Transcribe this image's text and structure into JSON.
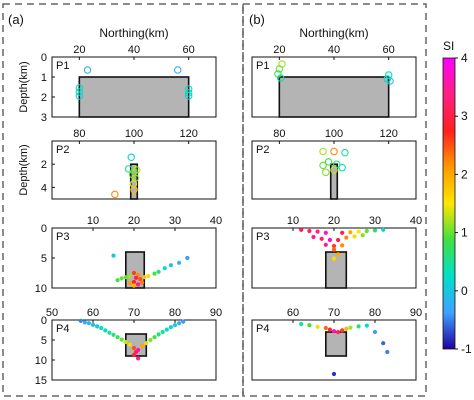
{
  "panel_labels": {
    "left": "(a)",
    "right": "(b)"
  },
  "colorbar": {
    "label": "SI",
    "min": -1,
    "max": 4,
    "ticks": [
      "4",
      "3",
      "2",
      "1",
      "0",
      "-1"
    ],
    "colors": [
      "#ff00ff",
      "#ff2080",
      "#ff2020",
      "#ff9a00",
      "#ffe600",
      "#40e040",
      "#00e0c8",
      "#40a0ff",
      "#2000a0"
    ]
  },
  "chart_data": [
    {
      "id": "a-P1",
      "type": "scatter",
      "panel_label": "P1",
      "xlabel": "Northing(km)",
      "ylabel": "Depth(km)",
      "xlim": [
        10,
        70
      ],
      "ylim": [
        0,
        3
      ],
      "y_inverted": true,
      "xticks": [
        "20",
        "40",
        "60"
      ],
      "yticks": [
        "0",
        "1",
        "2",
        "3"
      ],
      "block": {
        "x0": 20,
        "x1": 60,
        "y0": 1,
        "y1": 3
      },
      "points": [
        {
          "x": 23,
          "y": 0.65,
          "si": -0.2
        },
        {
          "x": 56,
          "y": 0.65,
          "si": -0.3
        },
        {
          "x": 20,
          "y": 1.55,
          "si": 0.2
        },
        {
          "x": 20,
          "y": 1.75,
          "si": 0.3
        },
        {
          "x": 20,
          "y": 1.95,
          "si": 0.1
        },
        {
          "x": 60,
          "y": 1.6,
          "si": 0.2
        },
        {
          "x": 60,
          "y": 1.8,
          "si": 0.3
        },
        {
          "x": 60,
          "y": 1.95,
          "si": 0.1
        }
      ]
    },
    {
      "id": "a-P2",
      "type": "scatter",
      "panel_label": "P2",
      "xlabel": "",
      "ylabel": "Depth(km)",
      "xlim": [
        70,
        130
      ],
      "ylim": [
        0,
        5
      ],
      "y_inverted": true,
      "xticks": [
        "80",
        "100",
        "120"
      ],
      "yticks": [
        "2",
        "4"
      ],
      "block": {
        "x0": 98.8,
        "x1": 101.2,
        "y0": 2,
        "y1": 5
      },
      "points": [
        {
          "x": 99,
          "y": 1.4,
          "si": 0.1
        },
        {
          "x": 98,
          "y": 2.4,
          "si": 0.6
        },
        {
          "x": 100,
          "y": 2.6,
          "si": 0.9
        },
        {
          "x": 101,
          "y": 2.5,
          "si": 1.3
        },
        {
          "x": 99.5,
          "y": 2.9,
          "si": 1.0
        },
        {
          "x": 100.5,
          "y": 3.2,
          "si": 1.2
        },
        {
          "x": 99.8,
          "y": 3.7,
          "si": 1.4
        },
        {
          "x": 100,
          "y": 4.2,
          "si": 1.8
        },
        {
          "x": 93,
          "y": 4.6,
          "si": 2.2
        }
      ]
    },
    {
      "id": "a-P3",
      "type": "scatter",
      "panel_label": "P3",
      "xlabel": "",
      "ylabel": "",
      "xlim": [
        0,
        40
      ],
      "ylim": [
        0,
        10
      ],
      "y_inverted": true,
      "xticks": [
        "10",
        "20",
        "30",
        "40"
      ],
      "yticks": [
        "0",
        "5",
        "10"
      ],
      "block": {
        "x0": 18,
        "x1": 22.5,
        "y0": 4,
        "y1": 10
      },
      "points": [
        {
          "x": 15,
          "y": 4.6,
          "si": 0.0
        },
        {
          "x": 20,
          "y": 7.5,
          "si": 2.6
        },
        {
          "x": 21,
          "y": 7.8,
          "si": 2.2
        },
        {
          "x": 19,
          "y": 8.0,
          "si": 1.2
        },
        {
          "x": 18,
          "y": 8.2,
          "si": 1.0
        },
        {
          "x": 17,
          "y": 8.4,
          "si": 1.0
        },
        {
          "x": 16,
          "y": 8.7,
          "si": 0.9
        },
        {
          "x": 20.5,
          "y": 8.3,
          "si": 3.0
        },
        {
          "x": 21.5,
          "y": 8.5,
          "si": 2.5
        },
        {
          "x": 22.5,
          "y": 8.2,
          "si": 1.8
        },
        {
          "x": 23.5,
          "y": 8.0,
          "si": 1.4
        },
        {
          "x": 25,
          "y": 7.6,
          "si": 0.9
        },
        {
          "x": 26,
          "y": 7.3,
          "si": 0.6
        },
        {
          "x": 27.5,
          "y": 6.7,
          "si": 0.2
        },
        {
          "x": 29,
          "y": 6.2,
          "si": -0.1
        },
        {
          "x": 31,
          "y": 5.8,
          "si": -0.2
        },
        {
          "x": 33,
          "y": 5.0,
          "si": -0.4
        },
        {
          "x": 20,
          "y": 9.0,
          "si": 2.8
        },
        {
          "x": 19,
          "y": 9.2,
          "si": 2.1
        },
        {
          "x": 21,
          "y": 9.4,
          "si": 3.3
        },
        {
          "x": 20,
          "y": 9.6,
          "si": 1.9
        },
        {
          "x": 22,
          "y": 9.1,
          "si": 2.3
        }
      ]
    },
    {
      "id": "a-P4",
      "type": "scatter",
      "panel_label": "P4",
      "xlabel": "",
      "ylabel": "",
      "xlim": [
        50,
        90
      ],
      "ylim": [
        0,
        15
      ],
      "y_inverted": true,
      "xticks": [
        "50",
        "60",
        "70",
        "80",
        "90"
      ],
      "yticks": [
        "0",
        "5",
        "10",
        "15"
      ],
      "block": {
        "x0": 68,
        "x1": 73,
        "y0": 3.5,
        "y1": 9
      },
      "points": [
        {
          "x": 57,
          "y": 0.2,
          "si": -0.5
        },
        {
          "x": 58,
          "y": 0.6,
          "si": -0.3
        },
        {
          "x": 59,
          "y": 0.8,
          "si": -0.2
        },
        {
          "x": 60,
          "y": 1.2,
          "si": -0.1
        },
        {
          "x": 61,
          "y": 1.6,
          "si": 0.0
        },
        {
          "x": 62,
          "y": 2.0,
          "si": 0.2
        },
        {
          "x": 63,
          "y": 2.6,
          "si": 0.3
        },
        {
          "x": 64,
          "y": 3.2,
          "si": 0.5
        },
        {
          "x": 65,
          "y": 3.7,
          "si": 0.6
        },
        {
          "x": 66,
          "y": 4.3,
          "si": 0.8
        },
        {
          "x": 67,
          "y": 4.9,
          "si": 1.0
        },
        {
          "x": 68,
          "y": 5.5,
          "si": 1.3
        },
        {
          "x": 69,
          "y": 6.2,
          "si": 1.6
        },
        {
          "x": 70,
          "y": 7.0,
          "si": 2.5
        },
        {
          "x": 70.5,
          "y": 8.0,
          "si": 3.2
        },
        {
          "x": 71,
          "y": 7.5,
          "si": 3.6
        },
        {
          "x": 70,
          "y": 8.7,
          "si": 3.0
        },
        {
          "x": 72,
          "y": 6.5,
          "si": 2.0
        },
        {
          "x": 73,
          "y": 5.8,
          "si": 1.4
        },
        {
          "x": 74,
          "y": 5.0,
          "si": 1.1
        },
        {
          "x": 75,
          "y": 4.3,
          "si": 0.9
        },
        {
          "x": 76,
          "y": 3.6,
          "si": 0.6
        },
        {
          "x": 77,
          "y": 3.0,
          "si": 0.5
        },
        {
          "x": 78,
          "y": 2.4,
          "si": 0.3
        },
        {
          "x": 79,
          "y": 1.8,
          "si": 0.1
        },
        {
          "x": 80,
          "y": 1.3,
          "si": 0.0
        },
        {
          "x": 81,
          "y": 0.8,
          "si": -0.2
        },
        {
          "x": 82,
          "y": 0.4,
          "si": -0.4
        },
        {
          "x": 71,
          "y": 9.6,
          "si": 3.5
        }
      ]
    },
    {
      "id": "b-P1",
      "type": "scatter",
      "panel_label": "P1",
      "xlabel": "Northing(km)",
      "ylabel": "",
      "xlim": [
        10,
        70
      ],
      "ylim": [
        0,
        3
      ],
      "y_inverted": true,
      "xticks": [
        "20",
        "40",
        "60"
      ],
      "yticks": [],
      "block": {
        "x0": 20,
        "x1": 60,
        "y0": 1,
        "y1": 3
      },
      "points": [
        {
          "x": 21,
          "y": 0.35,
          "si": 1.2
        },
        {
          "x": 20,
          "y": 0.6,
          "si": 1.0
        },
        {
          "x": 19.5,
          "y": 0.85,
          "si": 0.8
        },
        {
          "x": 20.5,
          "y": 1.05,
          "si": 0.4
        },
        {
          "x": 60,
          "y": 0.9,
          "si": 0.3
        },
        {
          "x": 59.5,
          "y": 1.1,
          "si": 0.2
        },
        {
          "x": 60.5,
          "y": 1.2,
          "si": 0.1
        }
      ]
    },
    {
      "id": "b-P2",
      "type": "scatter",
      "panel_label": "P2",
      "xlabel": "",
      "ylabel": "",
      "xlim": [
        70,
        130
      ],
      "ylim": [
        0,
        5
      ],
      "y_inverted": true,
      "xticks": [
        "80",
        "100",
        "120"
      ],
      "yticks": [],
      "block": {
        "x0": 98.8,
        "x1": 101.2,
        "y0": 2,
        "y1": 5
      },
      "points": [
        {
          "x": 96,
          "y": 0.9,
          "si": 1.2
        },
        {
          "x": 100,
          "y": 0.9,
          "si": 2.2
        },
        {
          "x": 104,
          "y": 1.0,
          "si": 0.5
        },
        {
          "x": 96,
          "y": 2.1,
          "si": 1.0
        },
        {
          "x": 98,
          "y": 1.8,
          "si": 0.8
        },
        {
          "x": 101,
          "y": 2.0,
          "si": 0.6
        },
        {
          "x": 103,
          "y": 2.3,
          "si": 0.3
        },
        {
          "x": 97,
          "y": 2.7,
          "si": 1.1
        },
        {
          "x": 100,
          "y": 2.5,
          "si": 1.3
        }
      ]
    },
    {
      "id": "b-P3",
      "type": "scatter",
      "panel_label": "P3",
      "xlabel": "",
      "ylabel": "",
      "xlim": [
        0,
        40
      ],
      "ylim": [
        0,
        10
      ],
      "y_inverted": true,
      "xticks": [
        "10",
        "20",
        "30",
        "40"
      ],
      "yticks": [],
      "block": {
        "x0": 18,
        "x1": 23,
        "y0": 4,
        "y1": 10
      },
      "points": [
        {
          "x": 12,
          "y": 0.3,
          "si": 3.0
        },
        {
          "x": 14,
          "y": 0.5,
          "si": 3.2
        },
        {
          "x": 16,
          "y": 0.6,
          "si": 3.4
        },
        {
          "x": 18,
          "y": 0.8,
          "si": 3.6
        },
        {
          "x": 22,
          "y": 0.8,
          "si": 2.9
        },
        {
          "x": 24,
          "y": 0.7,
          "si": 2.0
        },
        {
          "x": 26,
          "y": 0.6,
          "si": 1.5
        },
        {
          "x": 28,
          "y": 0.5,
          "si": 1.0
        },
        {
          "x": 30,
          "y": 0.4,
          "si": 0.6
        },
        {
          "x": 32,
          "y": 0.3,
          "si": 0.2
        },
        {
          "x": 15,
          "y": 1.5,
          "si": 3.5
        },
        {
          "x": 17,
          "y": 1.8,
          "si": 3.2
        },
        {
          "x": 19,
          "y": 2.0,
          "si": 3.8
        },
        {
          "x": 21,
          "y": 2.0,
          "si": 3.0
        },
        {
          "x": 23,
          "y": 1.6,
          "si": 2.2
        },
        {
          "x": 25,
          "y": 1.4,
          "si": 1.6
        },
        {
          "x": 27,
          "y": 1.2,
          "si": 1.1
        },
        {
          "x": 18,
          "y": 2.8,
          "si": 3.5
        },
        {
          "x": 20,
          "y": 3.0,
          "si": 2.6
        },
        {
          "x": 22,
          "y": 2.9,
          "si": 2.2
        },
        {
          "x": 20,
          "y": 3.6,
          "si": 2.4
        },
        {
          "x": 21,
          "y": 4.4,
          "si": 2.0
        },
        {
          "x": 20,
          "y": 5.1,
          "si": 1.6
        }
      ]
    },
    {
      "id": "b-P4",
      "type": "scatter",
      "panel_label": "P4",
      "xlabel": "",
      "ylabel": "",
      "xlim": [
        50,
        90
      ],
      "ylim": [
        0,
        15
      ],
      "y_inverted": true,
      "xticks": [
        "60",
        "70",
        "80",
        "90"
      ],
      "yticks": [],
      "block": {
        "x0": 68,
        "x1": 73,
        "y0": 3,
        "y1": 9
      },
      "points": [
        {
          "x": 62,
          "y": 1.0,
          "si": 0.4
        },
        {
          "x": 64,
          "y": 1.3,
          "si": 0.8
        },
        {
          "x": 66,
          "y": 1.7,
          "si": 1.4
        },
        {
          "x": 68,
          "y": 2.0,
          "si": 2.4
        },
        {
          "x": 69,
          "y": 2.4,
          "si": 3.0
        },
        {
          "x": 70,
          "y": 2.8,
          "si": 3.6
        },
        {
          "x": 71,
          "y": 3.0,
          "si": 3.2
        },
        {
          "x": 72,
          "y": 2.6,
          "si": 2.6
        },
        {
          "x": 73,
          "y": 2.2,
          "si": 1.9
        },
        {
          "x": 74,
          "y": 1.9,
          "si": 1.2
        },
        {
          "x": 76,
          "y": 1.6,
          "si": 0.6
        },
        {
          "x": 78,
          "y": 1.4,
          "si": 0.2
        },
        {
          "x": 80,
          "y": 3.0,
          "si": -0.4
        },
        {
          "x": 82,
          "y": 5.8,
          "si": -0.6
        },
        {
          "x": 83,
          "y": 8.0,
          "si": -0.5
        },
        {
          "x": 70,
          "y": 13.5,
          "si": -0.8
        }
      ]
    }
  ]
}
